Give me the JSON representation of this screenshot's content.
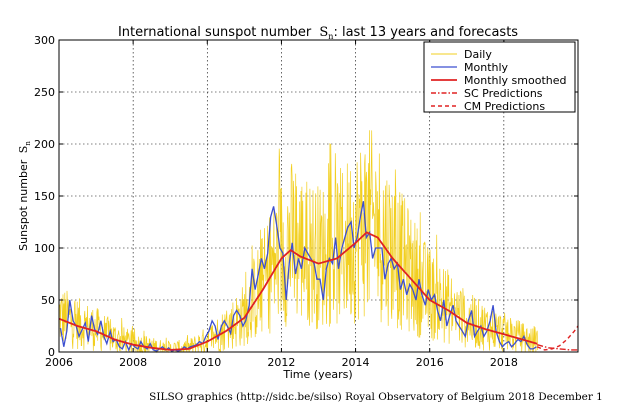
{
  "chart_data": {
    "type": "line",
    "title": "International sunspot number",
    "title_symbol": "S",
    "title_subscript": "n",
    "title_suffix": ": last 13 years and forecasts",
    "xlabel": "Time (years)",
    "ylabel": "Sunspot number",
    "ylabel_symbol": "S",
    "ylabel_subscript": "n",
    "xlim": [
      2006,
      2020
    ],
    "ylim": [
      0,
      300
    ],
    "xticks": [
      2006,
      2008,
      2010,
      2012,
      2014,
      2016,
      2018
    ],
    "yticks": [
      0,
      50,
      100,
      150,
      200,
      250,
      300
    ],
    "grid": true,
    "legend_position": "top-right",
    "credit": "SILSO graphics (http://sidc.be/silso)  Royal Observatory of Belgium  2018 December 1",
    "series": [
      {
        "name": "Daily",
        "style": "solid-thin",
        "color": "#f2cf1f",
        "values_note": "",
        "x": [],
        "y": []
      },
      {
        "name": "Monthly",
        "style": "solid",
        "color": "#3c4fd0",
        "x": [
          2006.04,
          2006.13,
          2006.21,
          2006.29,
          2006.38,
          2006.46,
          2006.54,
          2006.63,
          2006.71,
          2006.79,
          2006.88,
          2006.96,
          2007.04,
          2007.13,
          2007.21,
          2007.29,
          2007.38,
          2007.46,
          2007.54,
          2007.63,
          2007.71,
          2007.79,
          2007.88,
          2007.96,
          2008.04,
          2008.13,
          2008.21,
          2008.29,
          2008.38,
          2008.46,
          2008.54,
          2008.63,
          2008.71,
          2008.79,
          2008.88,
          2008.96,
          2009.04,
          2009.13,
          2009.21,
          2009.29,
          2009.38,
          2009.46,
          2009.54,
          2009.63,
          2009.71,
          2009.79,
          2009.88,
          2009.96,
          2010.04,
          2010.13,
          2010.21,
          2010.29,
          2010.38,
          2010.46,
          2010.54,
          2010.63,
          2010.71,
          2010.79,
          2010.88,
          2010.96,
          2011.04,
          2011.13,
          2011.21,
          2011.29,
          2011.38,
          2011.46,
          2011.54,
          2011.63,
          2011.71,
          2011.79,
          2011.88,
          2011.96,
          2012.04,
          2012.13,
          2012.21,
          2012.29,
          2012.38,
          2012.46,
          2012.54,
          2012.63,
          2012.71,
          2012.79,
          2012.88,
          2012.96,
          2013.04,
          2013.13,
          2013.21,
          2013.29,
          2013.38,
          2013.46,
          2013.54,
          2013.63,
          2013.71,
          2013.79,
          2013.88,
          2013.96,
          2014.04,
          2014.13,
          2014.21,
          2014.29,
          2014.38,
          2014.46,
          2014.54,
          2014.63,
          2014.71,
          2014.79,
          2014.88,
          2014.96,
          2015.04,
          2015.13,
          2015.21,
          2015.29,
          2015.38,
          2015.46,
          2015.54,
          2015.63,
          2015.71,
          2015.79,
          2015.88,
          2015.96,
          2016.04,
          2016.13,
          2016.21,
          2016.29,
          2016.38,
          2016.46,
          2016.54,
          2016.63,
          2016.71,
          2016.79,
          2016.88,
          2016.96,
          2017.04,
          2017.13,
          2017.21,
          2017.29,
          2017.38,
          2017.46,
          2017.54,
          2017.63,
          2017.71,
          2017.79,
          2017.88,
          2017.96,
          2018.04,
          2018.13,
          2018.21,
          2018.29,
          2018.38,
          2018.46,
          2018.54,
          2018.63,
          2018.71,
          2018.79,
          2018.88
        ],
        "y": [
          23,
          5,
          20,
          50,
          30,
          25,
          15,
          22,
          28,
          10,
          35,
          22,
          17,
          30,
          15,
          8,
          20,
          10,
          12,
          5,
          3,
          10,
          2,
          8,
          5,
          3,
          10,
          5,
          3,
          8,
          2,
          1,
          3,
          5,
          2,
          4,
          1,
          2,
          1,
          2,
          5,
          3,
          5,
          6,
          7,
          10,
          8,
          15,
          20,
          30,
          25,
          12,
          25,
          30,
          25,
          18,
          35,
          40,
          35,
          25,
          30,
          45,
          80,
          60,
          75,
          90,
          80,
          95,
          130,
          140,
          120,
          100,
          95,
          50,
          85,
          105,
          75,
          90,
          80,
          100,
          95,
          90,
          85,
          70,
          70,
          50,
          80,
          90,
          85,
          110,
          80,
          100,
          110,
          120,
          125,
          100,
          110,
          130,
          145,
          110,
          115,
          90,
          100,
          100,
          100,
          70,
          85,
          90,
          80,
          85,
          60,
          70,
          55,
          65,
          60,
          50,
          70,
          55,
          45,
          60,
          50,
          55,
          40,
          30,
          50,
          25,
          35,
          45,
          30,
          25,
          20,
          15,
          30,
          40,
          15,
          20,
          25,
          15,
          20,
          30,
          45,
          20,
          10,
          5,
          8,
          10,
          5,
          8,
          12,
          10,
          15,
          7,
          3,
          3,
          5
        ]
      },
      {
        "name": "Monthly smoothed",
        "style": "solid-thick",
        "color": "#e02222",
        "x": [
          2006.0,
          2006.5,
          2007.0,
          2007.5,
          2008.0,
          2008.5,
          2009.0,
          2009.5,
          2010.0,
          2010.5,
          2011.0,
          2011.5,
          2012.0,
          2012.25,
          2012.5,
          2013.0,
          2013.5,
          2014.0,
          2014.3,
          2014.6,
          2015.0,
          2015.5,
          2016.0,
          2016.5,
          2017.0,
          2017.5,
          2018.0,
          2018.5,
          2018.9
        ],
        "y": [
          32,
          25,
          20,
          12,
          7,
          4,
          2,
          3,
          10,
          20,
          33,
          60,
          90,
          98,
          92,
          85,
          90,
          105,
          115,
          110,
          90,
          70,
          50,
          40,
          28,
          22,
          17,
          12,
          8
        ]
      },
      {
        "name": "SC Predictions",
        "style": "dash-dot",
        "color": "#e02222",
        "x": [
          2018.9,
          2019.2,
          2019.5,
          2019.8,
          2020.0
        ],
        "y": [
          7,
          4,
          3,
          2,
          2
        ]
      },
      {
        "name": "CM Predictions",
        "style": "dashed",
        "color": "#e02222",
        "x": [
          2018.9,
          2019.1,
          2019.3,
          2019.5,
          2019.7,
          2019.9,
          2020.0
        ],
        "y": [
          5,
          2,
          3,
          6,
          12,
          20,
          25
        ]
      }
    ]
  }
}
